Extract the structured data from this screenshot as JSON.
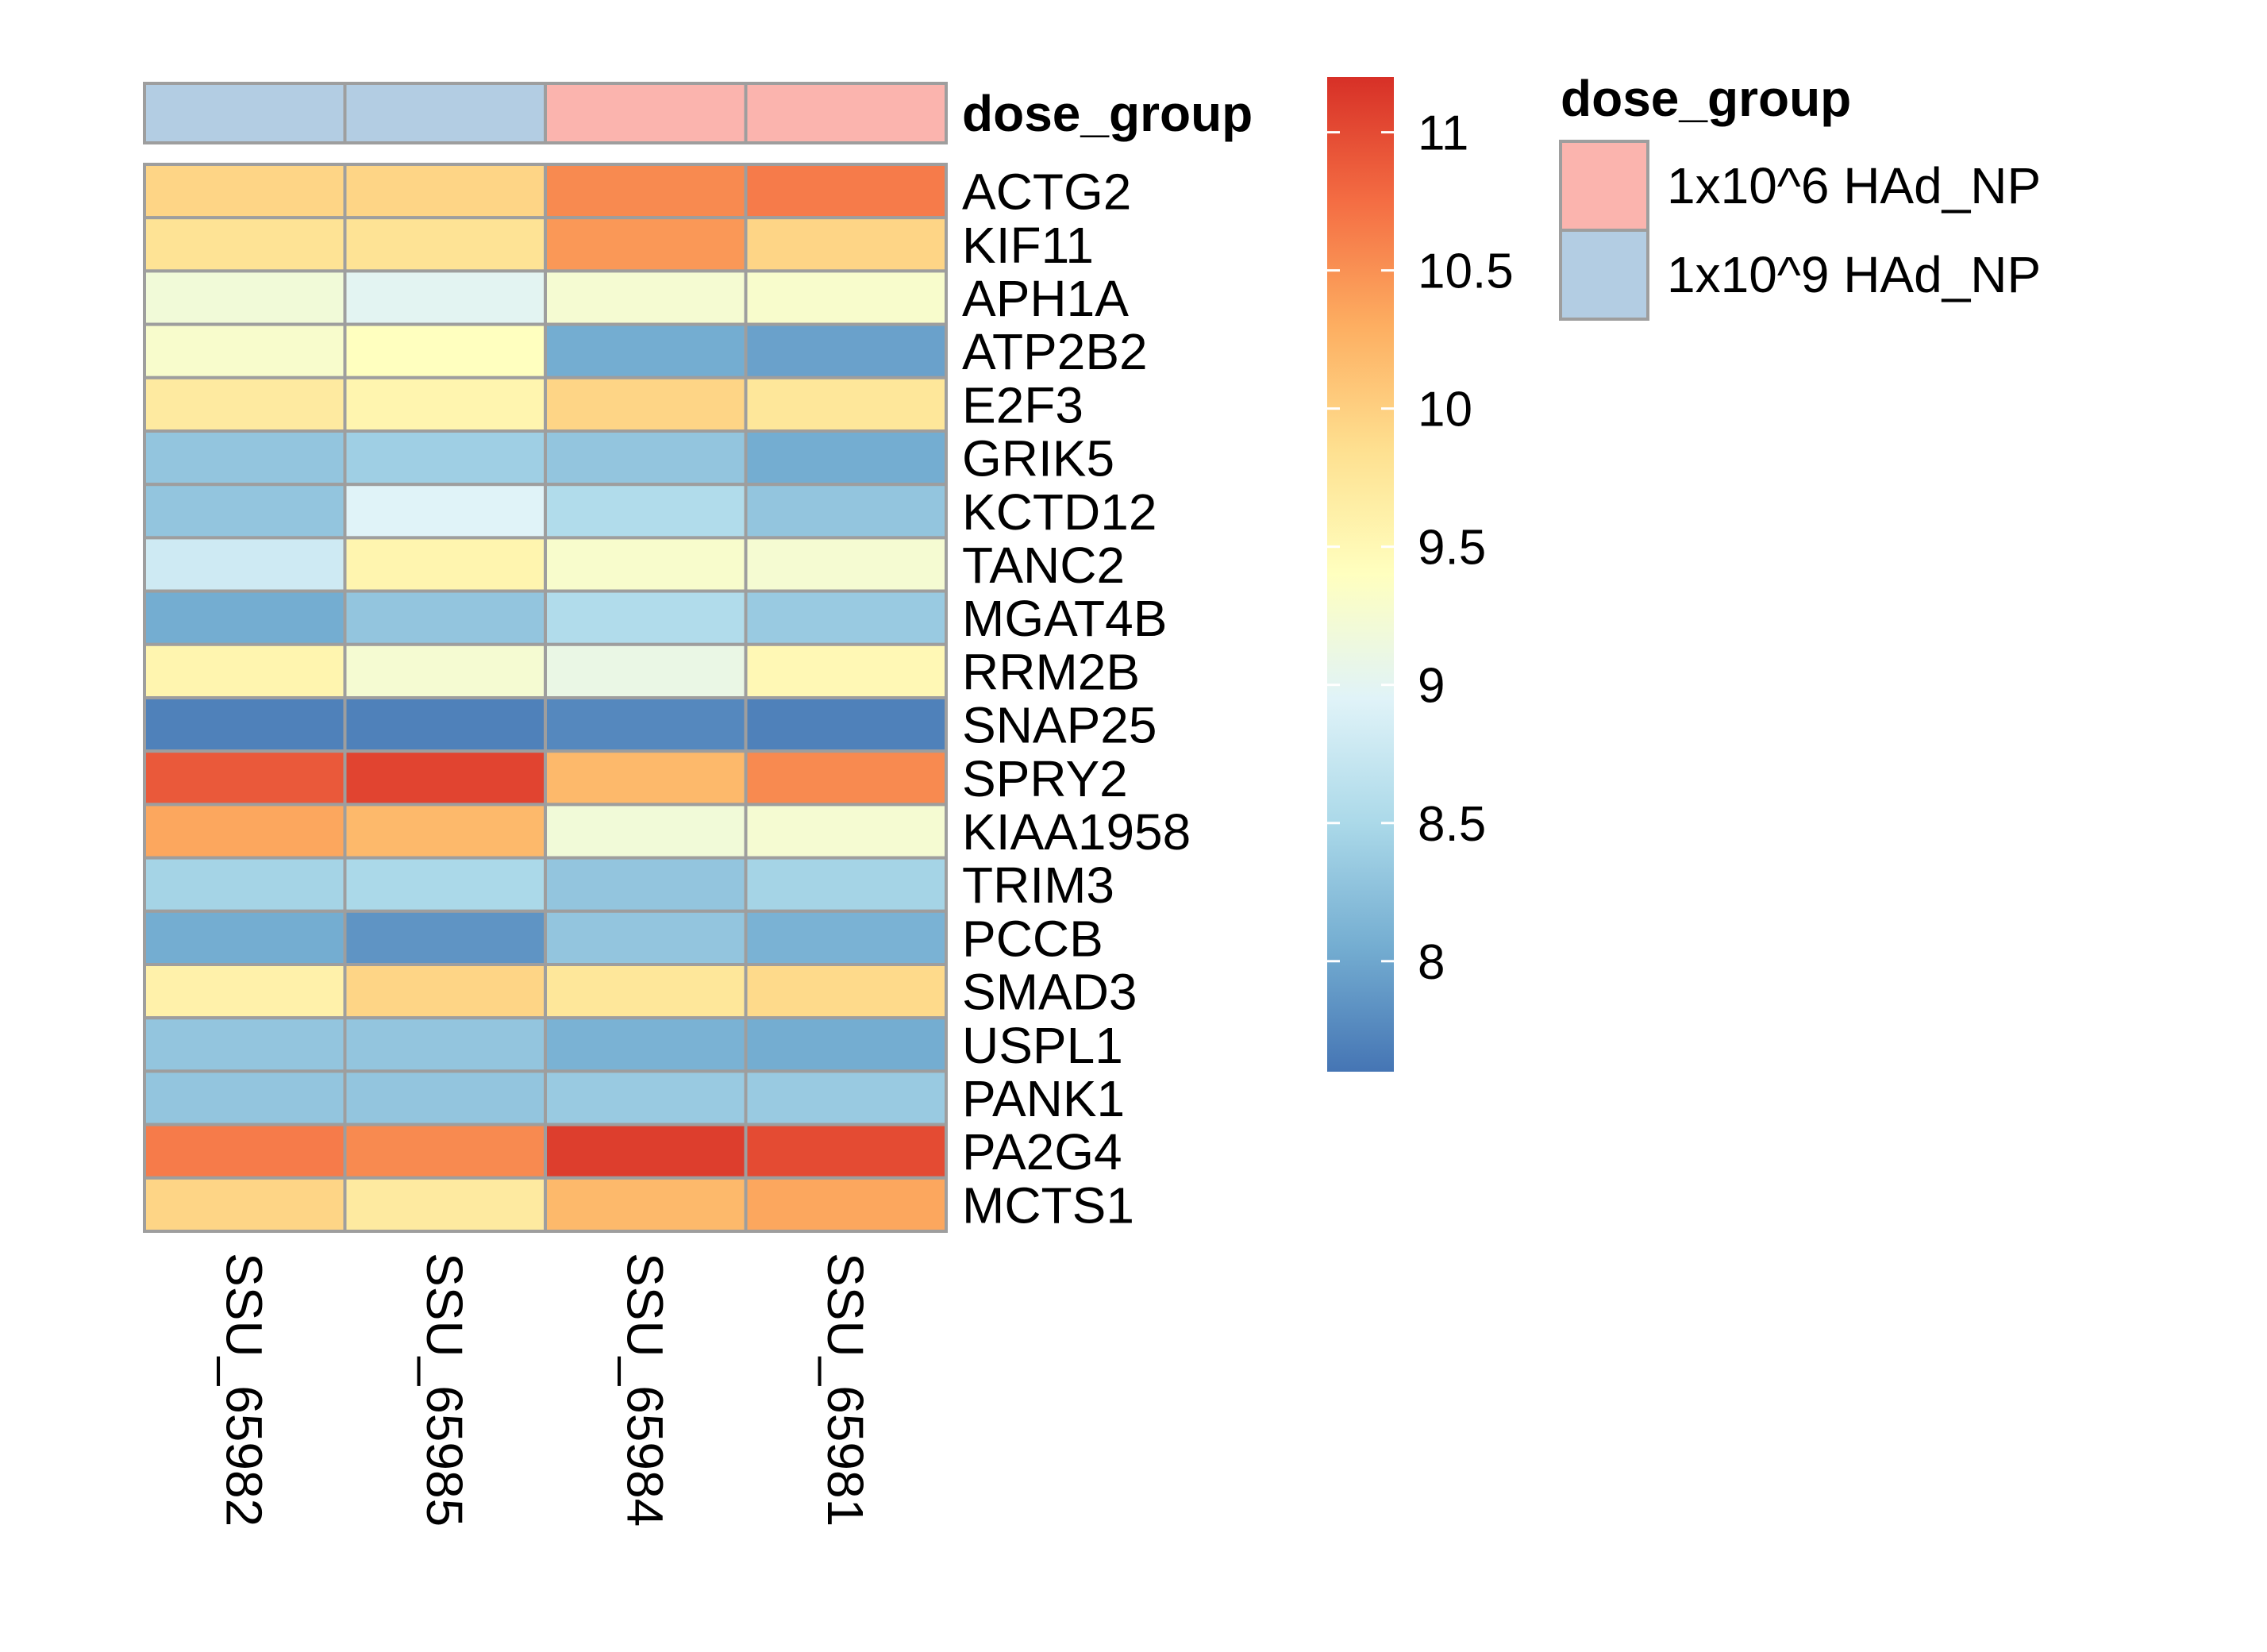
{
  "chart_data": {
    "type": "heatmap",
    "columns": [
      "SSU_65982",
      "SSU_65985",
      "SSU_65984",
      "SSU_65981"
    ],
    "rows": [
      "ACTG2",
      "KIF11",
      "APH1A",
      "ATP2B2",
      "E2F3",
      "GRIK5",
      "KCTD12",
      "TANC2",
      "MGAT4B",
      "RRM2B",
      "SNAP25",
      "SPRY2",
      "KIAA1958",
      "TRIM3",
      "PCCB",
      "SMAD3",
      "USPL1",
      "PANK1",
      "PA2G4",
      "MCTS1"
    ],
    "values": [
      [
        9.95,
        9.95,
        10.55,
        10.65
      ],
      [
        9.8,
        9.8,
        10.45,
        9.95
      ],
      [
        9.2,
        9.0,
        9.25,
        9.3
      ],
      [
        9.3,
        9.4,
        8.05,
        7.95
      ],
      [
        9.7,
        9.55,
        9.95,
        9.75
      ],
      [
        8.3,
        8.4,
        8.3,
        8.05
      ],
      [
        8.3,
        8.95,
        8.55,
        8.3
      ],
      [
        8.8,
        9.55,
        9.3,
        9.25
      ],
      [
        8.05,
        8.3,
        8.55,
        8.35
      ],
      [
        9.55,
        9.25,
        9.1,
        9.5
      ],
      [
        7.7,
        7.7,
        7.75,
        7.7
      ],
      [
        10.9,
        11.05,
        10.2,
        10.55
      ],
      [
        10.35,
        10.2,
        9.2,
        9.25
      ],
      [
        8.45,
        8.5,
        8.3,
        8.45
      ],
      [
        8.05,
        7.85,
        8.3,
        8.1
      ],
      [
        9.6,
        9.95,
        9.75,
        9.9
      ],
      [
        8.3,
        8.3,
        8.1,
        8.05
      ],
      [
        8.3,
        8.3,
        8.35,
        8.35
      ],
      [
        10.65,
        10.55,
        11.1,
        11.0
      ],
      [
        9.95,
        9.7,
        10.2,
        10.35
      ]
    ],
    "annotation": {
      "name": "dose_group",
      "per_column": [
        "1x10^9 HAd_NP",
        "1x10^9 HAd_NP",
        "1x10^6 HAd_NP",
        "1x10^6 HAd_NP"
      ],
      "legend": [
        {
          "label": "1x10^6 HAd_NP",
          "color": "#FBB4AE"
        },
        {
          "label": "1x10^9 HAd_NP",
          "color": "#B3CDE3"
        }
      ]
    },
    "colorbar": {
      "range": [
        7.6,
        11.2
      ],
      "ticks": [
        8,
        8.5,
        9,
        9.5,
        10,
        10.5,
        11
      ],
      "tick_labels": [
        "8",
        "8.5",
        "9",
        "9.5",
        "10",
        "10.5",
        "11"
      ],
      "palette": [
        "#4575B4",
        "#74ADD1",
        "#ABD9E9",
        "#E0F3F8",
        "#FFFFBF",
        "#FEE090",
        "#FDAE61",
        "#F46D43",
        "#D73027"
      ]
    },
    "grid_color": "#9E9E9E",
    "legend_placement": "right"
  }
}
